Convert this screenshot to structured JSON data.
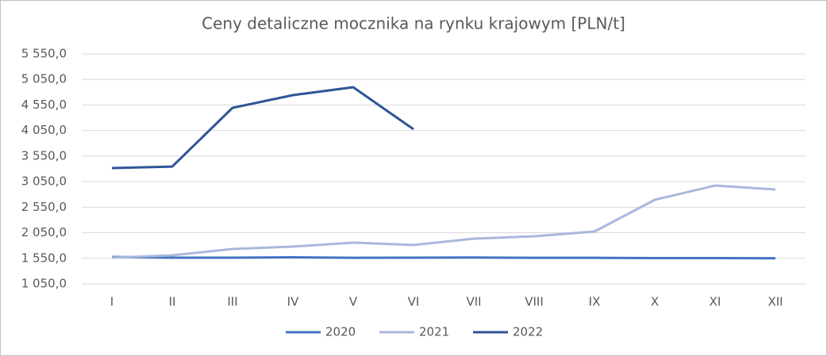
{
  "chart_data": {
    "type": "line",
    "title": "Ceny detaliczne mocznika na rynku krajowym [PLN/t]",
    "categories": [
      "I",
      "II",
      "III",
      "IV",
      "V",
      "VI",
      "VII",
      "VIII",
      "IX",
      "X",
      "XI",
      "XII"
    ],
    "series": [
      {
        "name": "2020",
        "color": "#4472c4",
        "values": [
          1577,
          1562,
          1562,
          1570,
          1560,
          1562,
          1565,
          1560,
          1560,
          1555,
          1555,
          1550
        ]
      },
      {
        "name": "2021",
        "color": "#a9b8dc",
        "values": [
          1562,
          1608,
          1733,
          1779,
          1857,
          1810,
          1934,
          1981,
          2074,
          2695,
          2974,
          2896
        ]
      },
      {
        "name": "2022",
        "color": "#2f5597",
        "values": [
          3316,
          3345,
          4495,
          4743,
          4898,
          4076,
          null,
          null,
          null,
          null,
          null,
          null
        ]
      }
    ],
    "ylim": [
      1050,
      5550
    ],
    "yticks": [
      {
        "value": 1050,
        "label": "1 050,0"
      },
      {
        "value": 1550,
        "label": "1 550,0"
      },
      {
        "value": 2050,
        "label": "2 050,0"
      },
      {
        "value": 2550,
        "label": "2 550,0"
      },
      {
        "value": 3050,
        "label": "3 050,0"
      },
      {
        "value": 3550,
        "label": "3 550,0"
      },
      {
        "value": 4050,
        "label": "4 050,0"
      },
      {
        "value": 4550,
        "label": "4 550,0"
      },
      {
        "value": 5050,
        "label": "5 050,0"
      },
      {
        "value": 5550,
        "label": "5 550,0"
      }
    ],
    "grid": true,
    "legend": "bottom"
  }
}
